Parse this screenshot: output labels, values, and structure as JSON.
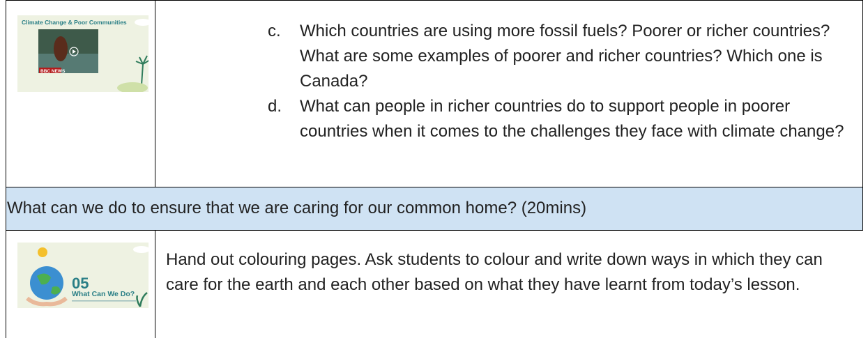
{
  "table": {
    "rows": [
      {
        "thumbnail": {
          "title": "Climate Change & Poor Communities",
          "badge": "BBC NEWS"
        },
        "items": [
          {
            "marker": "c.",
            "text": "Which countries are using more fossil fuels? Poorer or richer countries? What are some examples of poorer and richer countries? Which one is Canada?"
          },
          {
            "marker": "d.",
            "text": "What can people in richer countries do to support people in poorer countries when it comes to the challenges they face with climate change?"
          }
        ]
      },
      {
        "heading": "What can we do to ensure that we are caring for our common home? (20mins)"
      },
      {
        "thumbnail": {
          "number": "05",
          "title": "What Can We Do?"
        },
        "text": "Hand out colouring pages. Ask students to colour and write down ways in which they can care for the earth and each other based on what they have learnt from today’s lesson."
      }
    ]
  }
}
